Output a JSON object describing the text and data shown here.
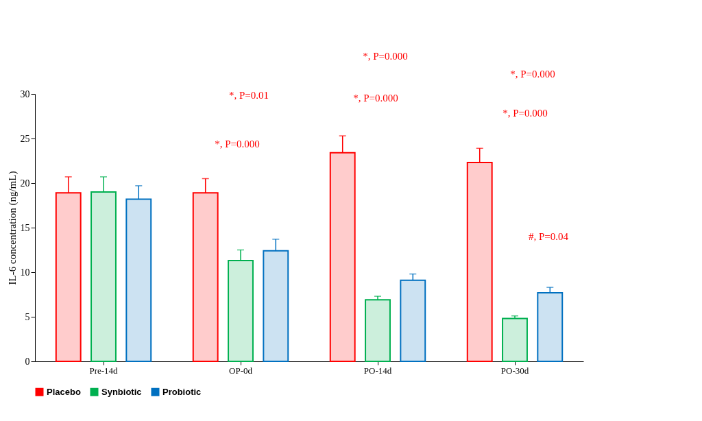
{
  "chart_data": {
    "type": "bar",
    "ylabel": "IL-6 concentration (ng/mL)",
    "categories": [
      "Pre-14d",
      "OP-0d",
      "PO-14d",
      "PO-30d"
    ],
    "series": [
      {
        "name": "Placebo",
        "color": "#ff0000",
        "values": [
          18.9,
          18.9,
          23.4,
          22.3
        ],
        "errors": [
          [
            18.9,
            20.7
          ],
          [
            18.9,
            20.5
          ],
          [
            23.4,
            25.3
          ],
          [
            22.3,
            23.9
          ]
        ]
      },
      {
        "name": "Synbiotic",
        "color": "#00b050",
        "values": [
          19.0,
          11.3,
          6.9,
          4.8
        ],
        "errors": [
          [
            19.0,
            20.7
          ],
          [
            11.3,
            12.5
          ],
          [
            6.9,
            7.3
          ],
          [
            4.8,
            5.1
          ]
        ]
      },
      {
        "name": "Probiotic",
        "color": "#0070c0",
        "values": [
          18.2,
          12.4,
          9.1,
          7.7
        ],
        "errors": [
          [
            18.2,
            19.7
          ],
          [
            12.4,
            13.7
          ],
          [
            9.1,
            9.8
          ],
          [
            7.7,
            8.3
          ]
        ]
      }
    ],
    "ylim": [
      0,
      30
    ],
    "yticks": [
      0,
      5,
      10,
      15,
      20,
      25,
      30
    ],
    "grid": false,
    "legend": "bottom",
    "annotations": [
      "*, P=0.01",
      "*, P=0.000",
      "*, P=0.000",
      "*, P=0.000",
      "*, P=0.000",
      "*, P=0.000",
      "#, P=0.04"
    ]
  }
}
